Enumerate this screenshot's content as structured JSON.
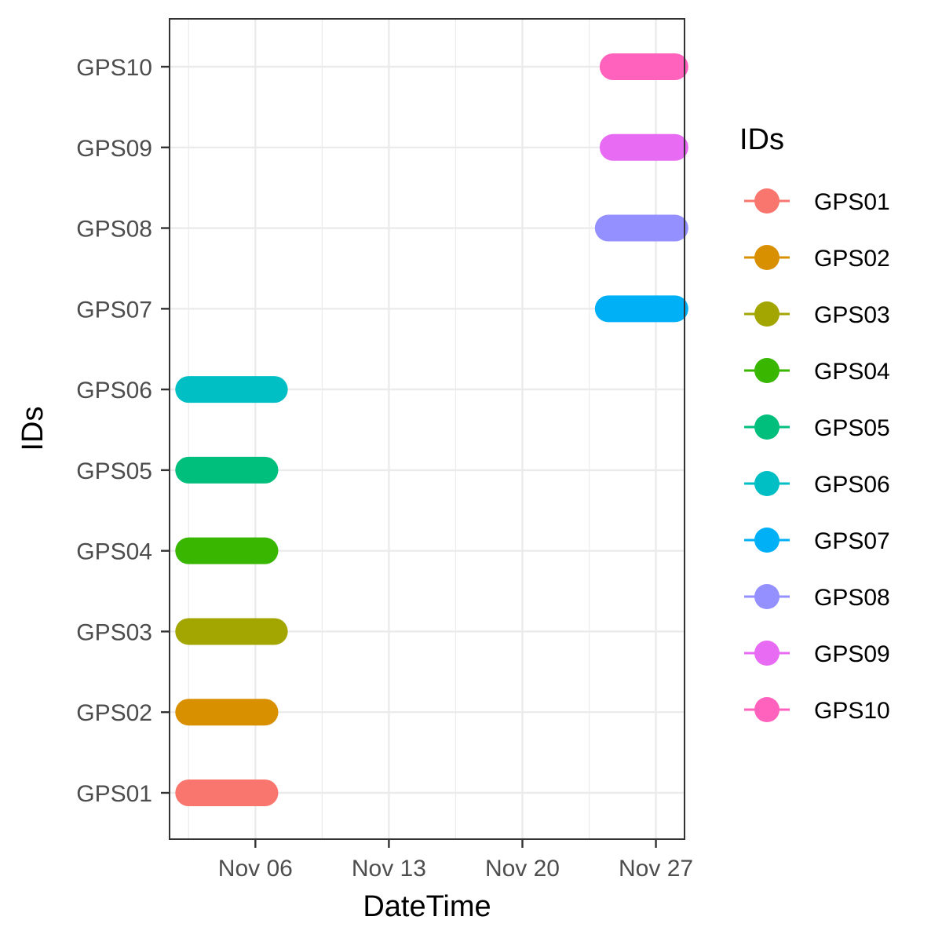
{
  "chart_data": {
    "type": "line",
    "xlabel": "DateTime",
    "ylabel": "IDs",
    "x_ticks": [
      "Nov 06",
      "Nov 13",
      "Nov 20",
      "Nov 27"
    ],
    "x_tick_dates": [
      "2000-11-06",
      "2000-11-13",
      "2000-11-20",
      "2000-11-27"
    ],
    "xlim": [
      "2000-11-01T12:00",
      "2000-11-28T12:00"
    ],
    "categories": [
      "GPS01",
      "GPS02",
      "GPS03",
      "GPS04",
      "GPS05",
      "GPS06",
      "GPS07",
      "GPS08",
      "GPS09",
      "GPS10"
    ],
    "grid": true,
    "legend": {
      "title": "IDs",
      "position": "right"
    },
    "series": [
      {
        "name": "GPS01",
        "color": "#F8766D",
        "start": "2000-11-02T12:00",
        "end": "2000-11-06T12:00"
      },
      {
        "name": "GPS02",
        "color": "#D89000",
        "start": "2000-11-02T12:00",
        "end": "2000-11-06T12:00"
      },
      {
        "name": "GPS03",
        "color": "#A3A500",
        "start": "2000-11-02T12:00",
        "end": "2000-11-07T00:00"
      },
      {
        "name": "GPS04",
        "color": "#39B600",
        "start": "2000-11-02T12:00",
        "end": "2000-11-06T12:00"
      },
      {
        "name": "GPS05",
        "color": "#00BF7D",
        "start": "2000-11-02T12:00",
        "end": "2000-11-06T12:00"
      },
      {
        "name": "GPS06",
        "color": "#00BFC4",
        "start": "2000-11-02T12:00",
        "end": "2000-11-07T00:00"
      },
      {
        "name": "GPS07",
        "color": "#00B0F6",
        "start": "2000-11-24T12:00",
        "end": "2000-11-28T00:00"
      },
      {
        "name": "GPS08",
        "color": "#9590FF",
        "start": "2000-11-24T12:00",
        "end": "2000-11-28T00:00"
      },
      {
        "name": "GPS09",
        "color": "#E76BF3",
        "start": "2000-11-24T18:00",
        "end": "2000-11-28T00:00"
      },
      {
        "name": "GPS10",
        "color": "#FF62BC",
        "start": "2000-11-24T18:00",
        "end": "2000-11-28T00:00"
      }
    ]
  }
}
